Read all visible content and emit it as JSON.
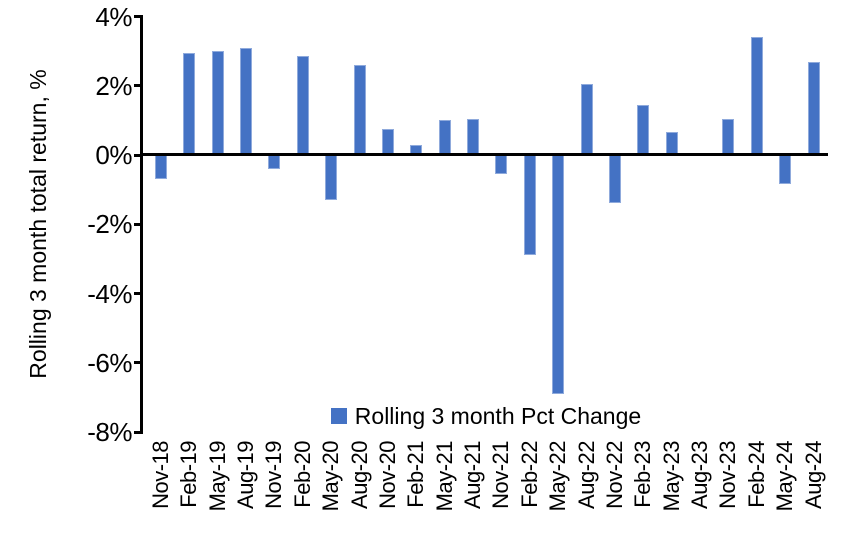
{
  "chart_data": {
    "type": "bar",
    "title": "",
    "xlabel": "",
    "ylabel": "Rolling 3 month total return, %",
    "categories": [
      "Nov-18",
      "Feb-19",
      "May-19",
      "Aug-19",
      "Nov-19",
      "Feb-20",
      "May-20",
      "Aug-20",
      "Nov-20",
      "Feb-21",
      "May-21",
      "Aug-21",
      "Nov-21",
      "Feb-22",
      "May-22",
      "Aug-22",
      "Nov-22",
      "Feb-23",
      "May-23",
      "Aug-23",
      "Nov-23",
      "Feb-24",
      "May-24",
      "Aug-24"
    ],
    "values": [
      -0.7,
      2.95,
      3.0,
      3.1,
      -0.4,
      2.85,
      -1.3,
      2.6,
      0.75,
      0.3,
      1.0,
      1.05,
      -0.55,
      -2.9,
      -6.9,
      2.05,
      -1.4,
      1.45,
      0.65,
      0.0,
      1.05,
      3.4,
      -0.85,
      2.7
    ],
    "ylim": [
      -8,
      4
    ],
    "ytick_step": 2,
    "ytick_labels": [
      "4%",
      "2%",
      "0%",
      "-2%",
      "-4%",
      "-6%",
      "-8%"
    ],
    "grid": false,
    "legend_position": "bottom-center-inside",
    "legend": [
      {
        "label": "Rolling 3 month Pct Change",
        "color": "#4472C4"
      }
    ],
    "colors": {
      "bar_fill": "#4472C4",
      "bar_border": "#8FAADC",
      "axis": "#000000",
      "text": "#000000",
      "background": "#FFFFFF"
    }
  }
}
